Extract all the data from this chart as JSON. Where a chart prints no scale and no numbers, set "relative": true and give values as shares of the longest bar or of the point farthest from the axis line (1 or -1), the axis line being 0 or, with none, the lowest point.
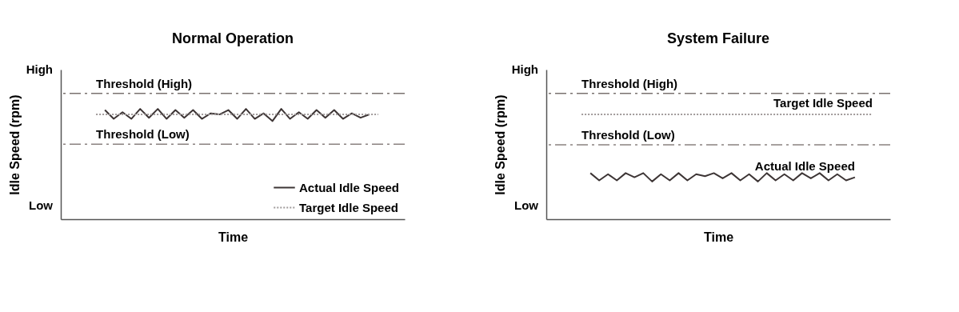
{
  "chart_data": [
    {
      "type": "line",
      "title": "Normal Operation",
      "xlabel": "Time",
      "ylabel": "Idle Speed (rpm)",
      "relative": true,
      "annotations": [
        "High",
        "Low"
      ],
      "categories": [
        null,
        null,
        null,
        null,
        null,
        null,
        null,
        null,
        null,
        null,
        null,
        null,
        null,
        null,
        null,
        null,
        null,
        null,
        null,
        null,
        null,
        null,
        null,
        null,
        null,
        null,
        null,
        null,
        null,
        null,
        null,
        null,
        null,
        null,
        null,
        null,
        null,
        null,
        null,
        null
      ],
      "legend": "bottom right",
      "series": [
        {
          "name": "Actual Idle Speed",
          "color": "#3d3535",
          "line_style": "solid",
          "values": [
            null,
            null,
            null,
            null,
            null,
            0.99,
            0.91,
            0.97,
            0.91,
            1,
            0.92,
            1,
            0.91,
            0.99,
            0.92,
            0.99,
            0.91,
            0.96,
            0.95,
            0.99,
            0.91,
            1,
            0.91,
            0.96,
            0.89,
            1,
            0.91,
            0.97,
            0.91,
            0.99,
            0.92,
            0.99,
            0.91,
            0.96,
            0.92,
            0.95,
            null,
            null,
            null,
            null
          ]
        },
        {
          "name": "Target Idle Speed",
          "color": "#a09a9a",
          "line_style": "dotted",
          "values": [
            null,
            null,
            null,
            null,
            0.95,
            0.95,
            0.95,
            0.95,
            0.95,
            0.95,
            0.95,
            0.95,
            0.95,
            0.95,
            0.95,
            0.95,
            0.95,
            0.95,
            0.95,
            0.95,
            0.95,
            0.95,
            0.95,
            0.95,
            0.95,
            0.95,
            0.95,
            0.95,
            0.95,
            0.95,
            0.95,
            0.95,
            0.95,
            0.95,
            0.95,
            0.95,
            0.95,
            null,
            null,
            null
          ]
        }
      ],
      "ref_lines": [
        {
          "axis": "y",
          "value": 1.14,
          "label": "Threshold (High)",
          "color": "#7a7270",
          "line_style": "dashed"
        },
        {
          "axis": "y",
          "value": 0.68,
          "label": "Threshold (Low)",
          "color": "#8a8280",
          "line_style": "dashed"
        }
      ]
    },
    {
      "type": "line",
      "title": "System Failure",
      "xlabel": "Time",
      "ylabel": "Idle Speed (rpm)",
      "relative": true,
      "annotations": [
        "High",
        "Low"
      ],
      "categories": [
        null,
        null,
        null,
        null,
        null,
        null,
        null,
        null,
        null,
        null,
        null,
        null,
        null,
        null,
        null,
        null,
        null,
        null,
        null,
        null,
        null,
        null,
        null,
        null,
        null,
        null,
        null,
        null,
        null,
        null,
        null,
        null,
        null,
        null,
        null,
        null,
        null,
        null,
        null,
        null
      ],
      "legend": false,
      "series": [
        {
          "name": "Actual Idle Speed",
          "color": "#3d3535",
          "line_style": "solid",
          "values": [
            null,
            null,
            null,
            null,
            null,
            0.44,
            0.37,
            0.43,
            0.37,
            0.44,
            0.4,
            0.44,
            0.36,
            0.43,
            0.37,
            0.44,
            0.37,
            0.43,
            0.41,
            0.44,
            0.39,
            0.44,
            0.37,
            0.43,
            0.36,
            0.44,
            0.37,
            0.43,
            0.37,
            0.44,
            0.39,
            0.44,
            0.37,
            0.43,
            0.37,
            0.4,
            null,
            null,
            null,
            null
          ]
        },
        {
          "name": "Target Idle Speed",
          "color": "#a09a9a",
          "line_style": "dotted",
          "values": [
            null,
            null,
            null,
            null,
            1,
            1,
            1,
            1,
            1,
            1,
            1,
            1,
            1,
            1,
            1,
            1,
            1,
            1,
            1,
            1,
            1,
            1,
            1,
            1,
            1,
            1,
            1,
            1,
            1,
            1,
            1,
            1,
            1,
            1,
            1,
            1,
            1,
            1,
            null,
            null
          ]
        }
      ],
      "ref_lines": [
        {
          "axis": "y",
          "value": 1.2,
          "label": "Threshold (High)",
          "color": "#7a7270",
          "line_style": "dashed"
        },
        {
          "axis": "y",
          "value": 0.71,
          "label": "Threshold (Low)",
          "color": "#8a8280",
          "line_style": "dashed"
        }
      ]
    }
  ]
}
